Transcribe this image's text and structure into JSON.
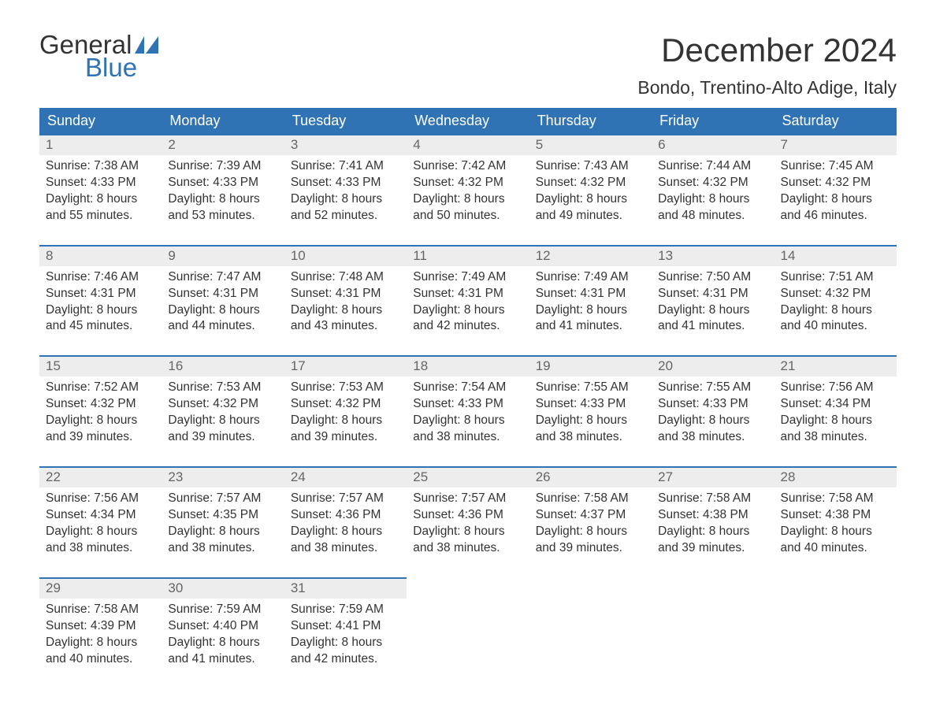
{
  "brand": {
    "line1": "General",
    "line2": "Blue",
    "sail_color": "#2f73b5",
    "text_color": "#333333"
  },
  "title": "December 2024",
  "location": "Bondo, Trentino-Alto Adige, Italy",
  "colors": {
    "header_bg": "#2f73b5",
    "header_text": "#ffffff",
    "daynum_bg": "#ededed",
    "daynum_text": "#666666",
    "week_divider": "#2f73b5",
    "body_text": "#333333",
    "page_bg": "#ffffff"
  },
  "weekdays": [
    "Sunday",
    "Monday",
    "Tuesday",
    "Wednesday",
    "Thursday",
    "Friday",
    "Saturday"
  ],
  "start_offset": 0,
  "days": [
    {
      "n": 1,
      "sunrise": "7:38 AM",
      "sunset": "4:33 PM",
      "dl1": "8 hours",
      "dl2": "and 55 minutes."
    },
    {
      "n": 2,
      "sunrise": "7:39 AM",
      "sunset": "4:33 PM",
      "dl1": "8 hours",
      "dl2": "and 53 minutes."
    },
    {
      "n": 3,
      "sunrise": "7:41 AM",
      "sunset": "4:33 PM",
      "dl1": "8 hours",
      "dl2": "and 52 minutes."
    },
    {
      "n": 4,
      "sunrise": "7:42 AM",
      "sunset": "4:32 PM",
      "dl1": "8 hours",
      "dl2": "and 50 minutes."
    },
    {
      "n": 5,
      "sunrise": "7:43 AM",
      "sunset": "4:32 PM",
      "dl1": "8 hours",
      "dl2": "and 49 minutes."
    },
    {
      "n": 6,
      "sunrise": "7:44 AM",
      "sunset": "4:32 PM",
      "dl1": "8 hours",
      "dl2": "and 48 minutes."
    },
    {
      "n": 7,
      "sunrise": "7:45 AM",
      "sunset": "4:32 PM",
      "dl1": "8 hours",
      "dl2": "and 46 minutes."
    },
    {
      "n": 8,
      "sunrise": "7:46 AM",
      "sunset": "4:31 PM",
      "dl1": "8 hours",
      "dl2": "and 45 minutes."
    },
    {
      "n": 9,
      "sunrise": "7:47 AM",
      "sunset": "4:31 PM",
      "dl1": "8 hours",
      "dl2": "and 44 minutes."
    },
    {
      "n": 10,
      "sunrise": "7:48 AM",
      "sunset": "4:31 PM",
      "dl1": "8 hours",
      "dl2": "and 43 minutes."
    },
    {
      "n": 11,
      "sunrise": "7:49 AM",
      "sunset": "4:31 PM",
      "dl1": "8 hours",
      "dl2": "and 42 minutes."
    },
    {
      "n": 12,
      "sunrise": "7:49 AM",
      "sunset": "4:31 PM",
      "dl1": "8 hours",
      "dl2": "and 41 minutes."
    },
    {
      "n": 13,
      "sunrise": "7:50 AM",
      "sunset": "4:31 PM",
      "dl1": "8 hours",
      "dl2": "and 41 minutes."
    },
    {
      "n": 14,
      "sunrise": "7:51 AM",
      "sunset": "4:32 PM",
      "dl1": "8 hours",
      "dl2": "and 40 minutes."
    },
    {
      "n": 15,
      "sunrise": "7:52 AM",
      "sunset": "4:32 PM",
      "dl1": "8 hours",
      "dl2": "and 39 minutes."
    },
    {
      "n": 16,
      "sunrise": "7:53 AM",
      "sunset": "4:32 PM",
      "dl1": "8 hours",
      "dl2": "and 39 minutes."
    },
    {
      "n": 17,
      "sunrise": "7:53 AM",
      "sunset": "4:32 PM",
      "dl1": "8 hours",
      "dl2": "and 39 minutes."
    },
    {
      "n": 18,
      "sunrise": "7:54 AM",
      "sunset": "4:33 PM",
      "dl1": "8 hours",
      "dl2": "and 38 minutes."
    },
    {
      "n": 19,
      "sunrise": "7:55 AM",
      "sunset": "4:33 PM",
      "dl1": "8 hours",
      "dl2": "and 38 minutes."
    },
    {
      "n": 20,
      "sunrise": "7:55 AM",
      "sunset": "4:33 PM",
      "dl1": "8 hours",
      "dl2": "and 38 minutes."
    },
    {
      "n": 21,
      "sunrise": "7:56 AM",
      "sunset": "4:34 PM",
      "dl1": "8 hours",
      "dl2": "and 38 minutes."
    },
    {
      "n": 22,
      "sunrise": "7:56 AM",
      "sunset": "4:34 PM",
      "dl1": "8 hours",
      "dl2": "and 38 minutes."
    },
    {
      "n": 23,
      "sunrise": "7:57 AM",
      "sunset": "4:35 PM",
      "dl1": "8 hours",
      "dl2": "and 38 minutes."
    },
    {
      "n": 24,
      "sunrise": "7:57 AM",
      "sunset": "4:36 PM",
      "dl1": "8 hours",
      "dl2": "and 38 minutes."
    },
    {
      "n": 25,
      "sunrise": "7:57 AM",
      "sunset": "4:36 PM",
      "dl1": "8 hours",
      "dl2": "and 38 minutes."
    },
    {
      "n": 26,
      "sunrise": "7:58 AM",
      "sunset": "4:37 PM",
      "dl1": "8 hours",
      "dl2": "and 39 minutes."
    },
    {
      "n": 27,
      "sunrise": "7:58 AM",
      "sunset": "4:38 PM",
      "dl1": "8 hours",
      "dl2": "and 39 minutes."
    },
    {
      "n": 28,
      "sunrise": "7:58 AM",
      "sunset": "4:38 PM",
      "dl1": "8 hours",
      "dl2": "and 40 minutes."
    },
    {
      "n": 29,
      "sunrise": "7:58 AM",
      "sunset": "4:39 PM",
      "dl1": "8 hours",
      "dl2": "and 40 minutes."
    },
    {
      "n": 30,
      "sunrise": "7:59 AM",
      "sunset": "4:40 PM",
      "dl1": "8 hours",
      "dl2": "and 41 minutes."
    },
    {
      "n": 31,
      "sunrise": "7:59 AM",
      "sunset": "4:41 PM",
      "dl1": "8 hours",
      "dl2": "and 42 minutes."
    }
  ],
  "labels": {
    "sunrise_prefix": "Sunrise: ",
    "sunset_prefix": "Sunset: ",
    "daylight_prefix": "Daylight: "
  }
}
